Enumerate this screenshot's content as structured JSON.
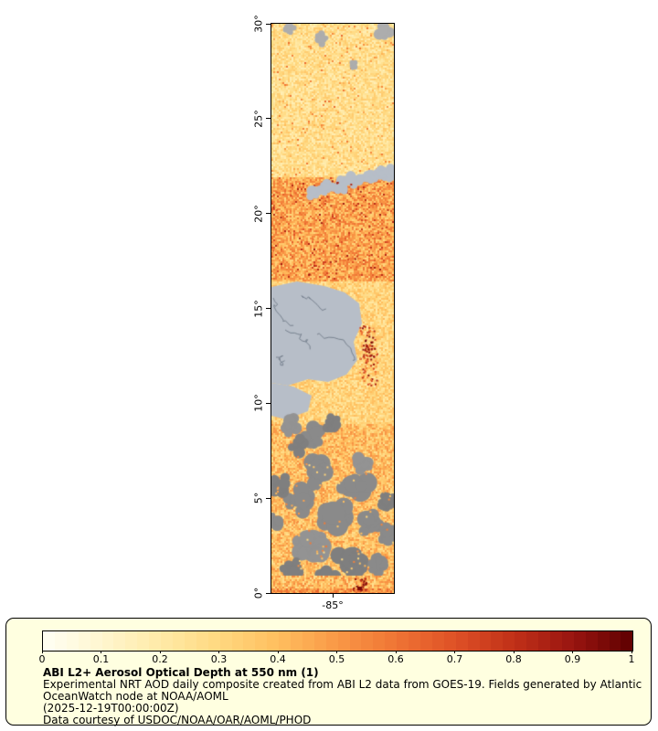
{
  "map": {
    "latitude_ticks": [
      "30°",
      "25°",
      "20°",
      "15°",
      "10°",
      "5°",
      "0°"
    ],
    "longitude_ticks": [
      "-85°"
    ],
    "colors": {
      "cloud_gray": "#8a8a8a",
      "light_gray_patch": "#adadad",
      "water_basemap": "#b7bec8",
      "basemap_border_line": "#78828f"
    }
  },
  "legend": {
    "panel_background": "#ffffe0",
    "colorbar": {
      "tick_labels": [
        "0",
        "0.1",
        "0.2",
        "0.3",
        "0.4",
        "0.5",
        "0.6",
        "0.7",
        "0.8",
        "0.9",
        "1"
      ],
      "colors": [
        "#fffff4",
        "#fff6cf",
        "#ffeaa7",
        "#ffd87f",
        "#ffbe5e",
        "#f99746",
        "#ef7434",
        "#de5026",
        "#c03018",
        "#981410",
        "#5e0000"
      ]
    },
    "title": "ABI L2+ Aerosol Optical Depth at 550 nm (1)",
    "lines": [
      "Experimental NRT AOD daily composite created from ABI L2 data from GOES-19. Fields generated by Atlantic",
      "OceanWatch node at NOAA/AOML",
      "(2025-12-19T00:00:00Z)",
      "Data courtesy of USDOC/NOAA/OAR/AOML/PHOD"
    ]
  }
}
